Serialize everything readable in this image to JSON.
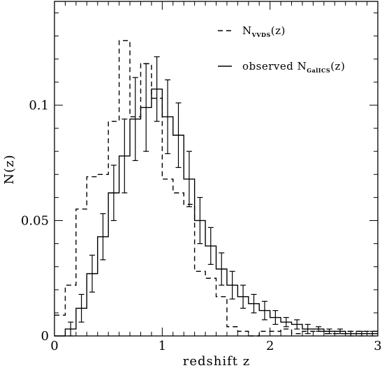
{
  "chart_data": {
    "type": "line",
    "xlabel": "redshift z",
    "ylabel": "N(z)",
    "xlim": [
      0,
      3
    ],
    "ylim": [
      0,
      0.145
    ],
    "x_ticks": [
      {
        "value": 0,
        "label": "0"
      },
      {
        "value": 1,
        "label": "1"
      },
      {
        "value": 2,
        "label": "2"
      },
      {
        "value": 3,
        "label": "3"
      }
    ],
    "y_ticks": [
      {
        "value": 0,
        "label": "0"
      },
      {
        "value": 0.05,
        "label": "0.05"
      },
      {
        "value": 0.1,
        "label": "0.1"
      }
    ],
    "legend": {
      "position": "top-right",
      "entries": [
        {
          "series": "vvds",
          "style": "dashed",
          "base": "N",
          "sub": "VVDS",
          "suffix": "(z)"
        },
        {
          "series": "gallcs",
          "style": "solid",
          "base": "observed N",
          "sub": "GalICS",
          "suffix": "(z)"
        }
      ]
    },
    "series": [
      {
        "id": "vvds",
        "label": "N_VVDS(z)",
        "style": "dashed",
        "bin_width": 0.1,
        "bin_starts": [
          0.0,
          0.1,
          0.2,
          0.3,
          0.4,
          0.5,
          0.6,
          0.7,
          0.8,
          0.9,
          1.0,
          1.1,
          1.2,
          1.3,
          1.4,
          1.5,
          1.6,
          1.7,
          1.8,
          1.9,
          2.0,
          2.1,
          2.2,
          2.3,
          2.4,
          2.5,
          2.6,
          2.7,
          2.8,
          2.9
        ],
        "values": [
          0.009,
          0.022,
          0.055,
          0.069,
          0.07,
          0.093,
          0.128,
          0.095,
          0.118,
          0.103,
          0.068,
          0.062,
          0.057,
          0.028,
          0.025,
          0.017,
          0.004,
          0.002,
          0.0,
          0.002,
          0.002,
          0.003,
          0.001,
          0.002,
          0.002,
          0.001,
          0.001,
          0.002,
          0.002,
          0.002
        ]
      },
      {
        "id": "gallcs",
        "label": "observed N_GalICS(z)",
        "style": "solid",
        "bin_width": 0.1,
        "bin_starts": [
          0.0,
          0.1,
          0.2,
          0.3,
          0.4,
          0.5,
          0.6,
          0.7,
          0.8,
          0.9,
          1.0,
          1.1,
          1.2,
          1.3,
          1.4,
          1.5,
          1.6,
          1.7,
          1.8,
          1.9,
          2.0,
          2.1,
          2.2,
          2.3,
          2.4,
          2.5,
          2.6,
          2.7,
          2.8,
          2.9
        ],
        "values": [
          0.0,
          0.003,
          0.012,
          0.027,
          0.043,
          0.062,
          0.078,
          0.094,
          0.099,
          0.107,
          0.095,
          0.087,
          0.068,
          0.05,
          0.039,
          0.029,
          0.022,
          0.017,
          0.014,
          0.011,
          0.008,
          0.006,
          0.005,
          0.003,
          0.003,
          0.002,
          0.002,
          0.001,
          0.001,
          0.001
        ],
        "errors": [
          0.0,
          0.003,
          0.006,
          0.008,
          0.01,
          0.012,
          0.016,
          0.018,
          0.019,
          0.014,
          0.016,
          0.014,
          0.012,
          0.01,
          0.008,
          0.007,
          0.006,
          0.005,
          0.004,
          0.004,
          0.003,
          0.002,
          0.002,
          0.002,
          0.001,
          0.001,
          0.001,
          0.001,
          0.001,
          0.001
        ]
      }
    ]
  }
}
